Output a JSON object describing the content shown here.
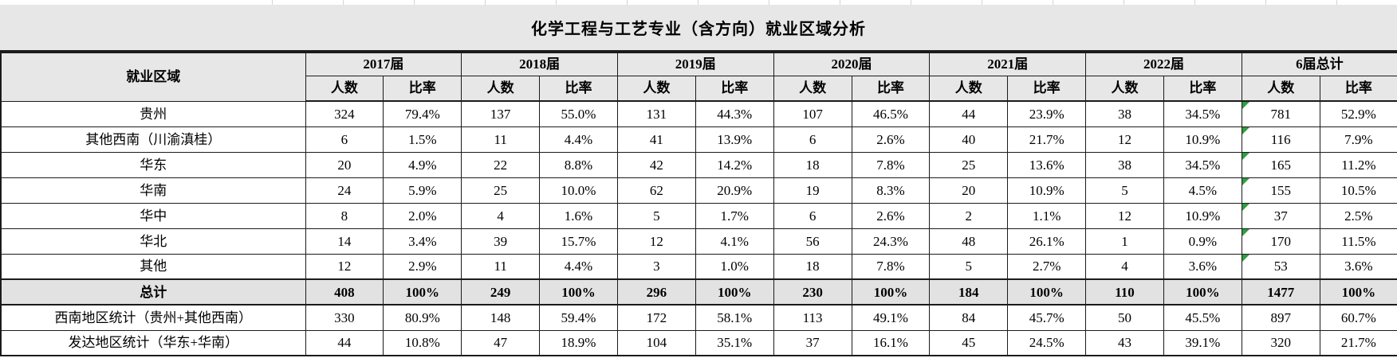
{
  "title": "化学工程与工艺专业（含方向）就业区域分析",
  "table": {
    "corner_header": "就业区域",
    "year_groups": [
      "2017届",
      "2018届",
      "2019届",
      "2020届",
      "2021届",
      "2022届",
      "6届总计"
    ],
    "subheaders": {
      "count": "人数",
      "rate": "比率"
    },
    "rows": [
      {
        "label": "贵州",
        "type": "data",
        "flagged": true,
        "values": [
          "324",
          "79.4%",
          "137",
          "55.0%",
          "131",
          "44.3%",
          "107",
          "46.5%",
          "44",
          "23.9%",
          "38",
          "34.5%",
          "781",
          "52.9%"
        ]
      },
      {
        "label": "其他西南（川渝滇桂）",
        "type": "data",
        "flagged": true,
        "values": [
          "6",
          "1.5%",
          "11",
          "4.4%",
          "41",
          "13.9%",
          "6",
          "2.6%",
          "40",
          "21.7%",
          "12",
          "10.9%",
          "116",
          "7.9%"
        ]
      },
      {
        "label": "华东",
        "type": "data",
        "flagged": true,
        "values": [
          "20",
          "4.9%",
          "22",
          "8.8%",
          "42",
          "14.2%",
          "18",
          "7.8%",
          "25",
          "13.6%",
          "38",
          "34.5%",
          "165",
          "11.2%"
        ]
      },
      {
        "label": "华南",
        "type": "data",
        "flagged": true,
        "values": [
          "24",
          "5.9%",
          "25",
          "10.0%",
          "62",
          "20.9%",
          "19",
          "8.3%",
          "20",
          "10.9%",
          "5",
          "4.5%",
          "155",
          "10.5%"
        ]
      },
      {
        "label": "华中",
        "type": "data",
        "flagged": true,
        "values": [
          "8",
          "2.0%",
          "4",
          "1.6%",
          "5",
          "1.7%",
          "6",
          "2.6%",
          "2",
          "1.1%",
          "12",
          "10.9%",
          "37",
          "2.5%"
        ]
      },
      {
        "label": "华北",
        "type": "data",
        "flagged": true,
        "values": [
          "14",
          "3.4%",
          "39",
          "15.7%",
          "12",
          "4.1%",
          "56",
          "24.3%",
          "48",
          "26.1%",
          "1",
          "0.9%",
          "170",
          "11.5%"
        ]
      },
      {
        "label": "其他",
        "type": "data",
        "flagged": true,
        "values": [
          "12",
          "2.9%",
          "11",
          "4.4%",
          "3",
          "1.0%",
          "18",
          "7.8%",
          "5",
          "2.7%",
          "4",
          "3.6%",
          "53",
          "3.6%"
        ]
      },
      {
        "label": "总计",
        "type": "total",
        "flagged": false,
        "values": [
          "408",
          "100%",
          "249",
          "100%",
          "296",
          "100%",
          "230",
          "100%",
          "184",
          "100%",
          "110",
          "100%",
          "1477",
          "100%"
        ]
      },
      {
        "label": "西南地区统计（贵州+其他西南）",
        "type": "data",
        "flagged": false,
        "values": [
          "330",
          "80.9%",
          "148",
          "59.4%",
          "172",
          "58.1%",
          "113",
          "49.1%",
          "84",
          "45.7%",
          "50",
          "45.5%",
          "897",
          "60.7%"
        ]
      },
      {
        "label": "发达地区统计（华东+华南）",
        "type": "data",
        "flagged": false,
        "values": [
          "44",
          "10.8%",
          "47",
          "18.9%",
          "104",
          "35.1%",
          "37",
          "16.1%",
          "45",
          "24.5%",
          "43",
          "39.1%",
          "320",
          "21.7%"
        ]
      }
    ],
    "flag_value_index": 12
  },
  "colors": {
    "band_gray": "#e8e7e7",
    "total_row_gray": "#e2e2e2",
    "border_black": "#1b1b1b",
    "flag_green": "#2f9e41",
    "gridline_gray": "#d4d4d8"
  }
}
